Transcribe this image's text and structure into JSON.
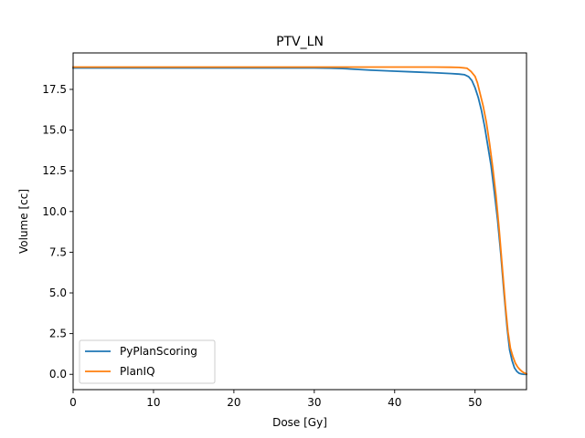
{
  "chart_data": {
    "type": "line",
    "title": "PTV_LN",
    "xlabel": "Dose [Gy]",
    "ylabel": "Volume [cc]",
    "xlim": [
      0,
      56.4
    ],
    "ylim": [
      -0.94,
      19.74
    ],
    "xticks": [
      0,
      10,
      20,
      30,
      40,
      50
    ],
    "yticks": [
      0.0,
      2.5,
      5.0,
      7.5,
      10.0,
      12.5,
      15.0,
      17.5
    ],
    "ytick_labels": [
      "0.0",
      "2.5",
      "5.0",
      "7.5",
      "10.0",
      "12.5",
      "15.0",
      "17.5"
    ],
    "grid": false,
    "legend_position": "lower-left",
    "series": [
      {
        "name": "PyPlanScoring",
        "color": "#1f77b4",
        "x": [
          0,
          5,
          10,
          15,
          20,
          25,
          30,
          32,
          33.5,
          35,
          37,
          40,
          42,
          45,
          47,
          48,
          48.7,
          49.2,
          49.6,
          50.0,
          50.4,
          50.8,
          51.2,
          51.6,
          52.0,
          52.4,
          52.8,
          53.2,
          53.6,
          54.0,
          54.3,
          54.6,
          54.9,
          55.2,
          55.5,
          55.8,
          56.1,
          56.4
        ],
        "y": [
          18.82,
          18.82,
          18.82,
          18.82,
          18.82,
          18.82,
          18.82,
          18.8,
          18.78,
          18.74,
          18.68,
          18.62,
          18.58,
          18.52,
          18.47,
          18.44,
          18.4,
          18.28,
          18.05,
          17.6,
          17.0,
          16.2,
          15.2,
          14.0,
          12.8,
          11.2,
          9.5,
          7.4,
          5.0,
          2.8,
          1.5,
          0.85,
          0.4,
          0.18,
          0.06,
          0.02,
          0.0,
          0.0
        ]
      },
      {
        "name": "PlanIQ",
        "color": "#ff7f0e",
        "x": [
          0,
          5,
          10,
          15,
          20,
          25,
          30,
          35,
          40,
          45,
          47,
          48,
          49,
          49.5,
          50.0,
          50.3,
          50.6,
          51.0,
          51.4,
          51.8,
          52.2,
          52.6,
          53.0,
          53.4,
          53.8,
          54.1,
          54.4,
          54.7,
          55.0,
          55.3,
          55.6,
          55.9,
          56.2,
          56.4
        ],
        "y": [
          18.87,
          18.87,
          18.87,
          18.87,
          18.87,
          18.87,
          18.87,
          18.87,
          18.87,
          18.87,
          18.86,
          18.85,
          18.8,
          18.6,
          18.3,
          17.9,
          17.3,
          16.5,
          15.5,
          14.2,
          12.7,
          11.0,
          8.9,
          6.5,
          4.1,
          2.6,
          1.6,
          1.1,
          0.7,
          0.45,
          0.28,
          0.15,
          0.07,
          0.03
        ]
      }
    ]
  }
}
